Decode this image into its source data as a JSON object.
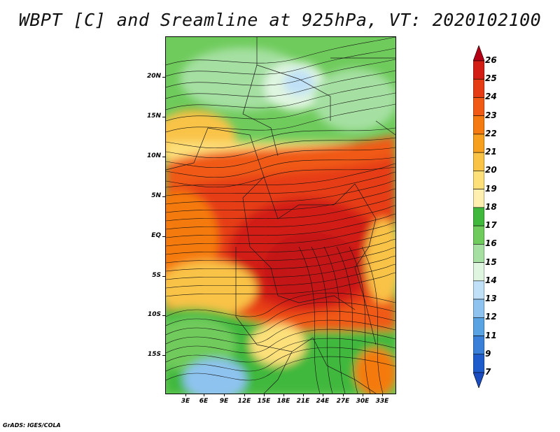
{
  "title": "WBPT [C] and Sreamline at 925hPa, VT: 2020102100",
  "footer": "GrADS: IGES/COLA",
  "map": {
    "y_ticks": [
      "20N",
      "15N",
      "10N",
      "5N",
      "EQ",
      "5S",
      "10S",
      "15S"
    ],
    "x_ticks": [
      "3E",
      "6E",
      "9E",
      "12E",
      "15E",
      "18E",
      "21E",
      "24E",
      "27E",
      "30E",
      "33E"
    ]
  },
  "colorbar": {
    "labels": [
      "26",
      "25",
      "24",
      "23",
      "22",
      "21",
      "20",
      "19",
      "18",
      "17",
      "16",
      "15",
      "14",
      "13",
      "12",
      "11",
      "9",
      "7"
    ],
    "colors": [
      "#b40014",
      "#d21e14",
      "#e63c14",
      "#f05a14",
      "#f57a10",
      "#f7a01e",
      "#f9c346",
      "#fde07a",
      "#fff0b0",
      "#3fb83c",
      "#6fcb5c",
      "#a5e0a2",
      "#dff5e0",
      "#bfe0f7",
      "#8ec3ef",
      "#5aa3e3",
      "#3a7fd8",
      "#1e5ccc",
      "#1a4cc0"
    ]
  }
}
